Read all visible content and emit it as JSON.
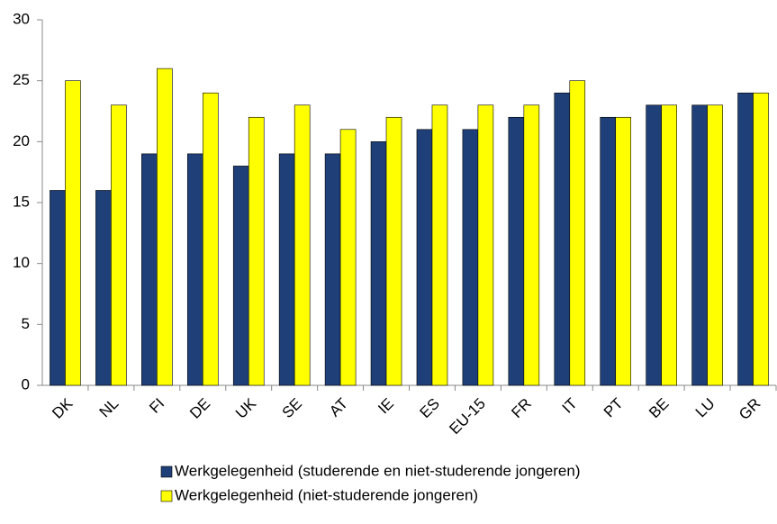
{
  "chart_data": {
    "type": "bar",
    "categories": [
      "DK",
      "NL",
      "FI",
      "DE",
      "UK",
      "SE",
      "AT",
      "IE",
      "ES",
      "EU-15",
      "FR",
      "IT",
      "PT",
      "BE",
      "LU",
      "GR"
    ],
    "series": [
      {
        "name": "Werkgelegenheid (studerende en niet-studerende jongeren)",
        "color": "#1f3f78",
        "values": [
          16,
          16,
          19,
          19,
          18,
          19,
          19,
          20,
          21,
          21,
          22,
          24,
          22,
          23,
          23,
          24
        ]
      },
      {
        "name": "Werkgelegenheid (niet-studerende jongeren)",
        "color": "#ffff00",
        "values": [
          25,
          23,
          26,
          24,
          22,
          23,
          21,
          22,
          23,
          23,
          23,
          25,
          22,
          23,
          23,
          24
        ]
      }
    ],
    "ylim": [
      0,
      30
    ],
    "yticks": [
      0,
      5,
      10,
      15,
      20,
      25,
      30
    ],
    "grid": false,
    "legend": "bottom"
  }
}
